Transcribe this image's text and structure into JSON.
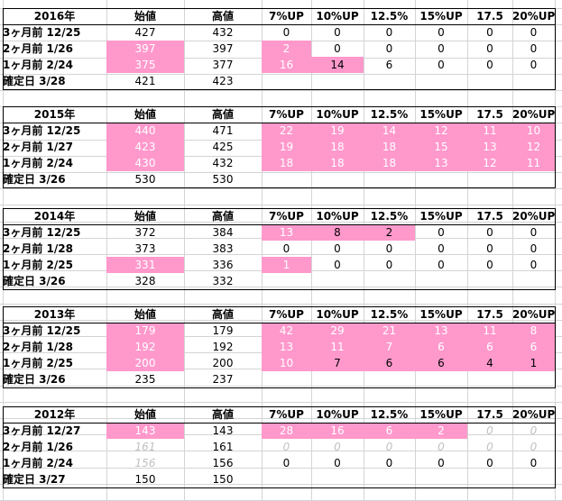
{
  "blocks": [
    {
      "year": "2016年",
      "headers": [
        "始値",
        "高値",
        "7%UP",
        "10%UP",
        "12.5%",
        "15%UP",
        "17.5",
        "20%UP"
      ],
      "rows": [
        {
          "label": "3ヶ月前 12/25",
          "open": "427",
          "high": "432",
          "pcts": [
            "0",
            "0",
            "0",
            "0",
            "0",
            "0"
          ],
          "open_hl": false,
          "pct_hl": [
            false,
            false,
            false,
            false,
            false,
            false
          ]
        },
        {
          "label": "2ヶ月前 1/26",
          "open": "397",
          "high": "397",
          "pcts": [
            "2",
            "0",
            "0",
            "0",
            "0",
            "0"
          ],
          "open_hl": true,
          "pct_hl": [
            true,
            false,
            false,
            false,
            false,
            false
          ]
        },
        {
          "label": "1ヶ月前 2/24",
          "open": "375",
          "high": "377",
          "pcts": [
            "16",
            "14",
            "6",
            "0",
            "0",
            "0"
          ],
          "open_hl": true,
          "pct_hl": [
            true,
            true,
            false,
            false,
            false,
            false
          ]
        },
        {
          "label": "確定日 3/28",
          "open": "421",
          "high": "423",
          "pcts": [
            "",
            "",
            "",
            "",
            "",
            ""
          ],
          "open_hl": false,
          "pct_hl": [
            false,
            false,
            false,
            false,
            false,
            false
          ]
        }
      ]
    },
    {
      "year": "2015年",
      "headers": [
        "始値",
        "高値",
        "7%UP",
        "10%UP",
        "12.5%",
        "15%UP",
        "17.5",
        "20%UP"
      ],
      "rows": [
        {
          "label": "3ヶ月前 12/25",
          "open": "440",
          "high": "471",
          "pcts": [
            "22",
            "19",
            "14",
            "12",
            "11",
            "10"
          ],
          "open_hl": true,
          "pct_hl": [
            true,
            true,
            true,
            true,
            true,
            true
          ]
        },
        {
          "label": "2ヶ月前 1/27",
          "open": "423",
          "high": "425",
          "pcts": [
            "19",
            "18",
            "18",
            "15",
            "13",
            "12"
          ],
          "open_hl": true,
          "pct_hl": [
            true,
            true,
            true,
            true,
            true,
            true
          ]
        },
        {
          "label": "1ヶ月前 2/24",
          "open": "430",
          "high": "432",
          "pcts": [
            "18",
            "18",
            "18",
            "13",
            "12",
            "11"
          ],
          "open_hl": true,
          "pct_hl": [
            true,
            true,
            true,
            true,
            true,
            true
          ]
        },
        {
          "label": "確定日 3/26",
          "open": "530",
          "high": "530",
          "pcts": [
            "",
            "",
            "",
            "",
            "",
            ""
          ],
          "open_hl": false,
          "pct_hl": [
            false,
            false,
            false,
            false,
            false,
            false
          ]
        }
      ]
    },
    {
      "year": "2014年",
      "headers": [
        "始値",
        "高値",
        "7%UP",
        "10%UP",
        "12.5%",
        "15%UP",
        "17.5",
        "20%UP"
      ],
      "rows": [
        {
          "label": "3ヶ月前 12/25",
          "open": "372",
          "high": "384",
          "pcts": [
            "13",
            "8",
            "2",
            "0",
            "0",
            "0"
          ],
          "open_hl": false,
          "pct_hl": [
            true,
            true,
            true,
            false,
            false,
            false
          ]
        },
        {
          "label": "2ヶ月前 1/28",
          "open": "373",
          "high": "383",
          "pcts": [
            "0",
            "0",
            "0",
            "0",
            "0",
            "0"
          ],
          "open_hl": false,
          "pct_hl": [
            false,
            false,
            false,
            false,
            false,
            false
          ]
        },
        {
          "label": "1ヶ月前 2/25",
          "open": "331",
          "high": "336",
          "pcts": [
            "1",
            "0",
            "0",
            "0",
            "0",
            "0"
          ],
          "open_hl": true,
          "pct_hl": [
            true,
            false,
            false,
            false,
            false,
            false
          ]
        },
        {
          "label": "確定日 3/26",
          "open": "328",
          "high": "332",
          "pcts": [
            "",
            "",
            "",
            "",
            "",
            ""
          ],
          "open_hl": false,
          "pct_hl": [
            false,
            false,
            false,
            false,
            false,
            false
          ]
        }
      ]
    },
    {
      "year": "2013年",
      "headers": [
        "始値",
        "高値",
        "7%UP",
        "10%UP",
        "12.5%",
        "15%UP",
        "17.5",
        "20%UP"
      ],
      "rows": [
        {
          "label": "3ヶ月前 12/25",
          "open": "179",
          "high": "179",
          "pcts": [
            "42",
            "29",
            "21",
            "13",
            "11",
            "8"
          ],
          "open_hl": true,
          "pct_hl": [
            true,
            true,
            true,
            true,
            true,
            true
          ]
        },
        {
          "label": "2ヶ月前 1/28",
          "open": "192",
          "high": "192",
          "pcts": [
            "13",
            "11",
            "7",
            "6",
            "6",
            "6"
          ],
          "open_hl": true,
          "pct_hl": [
            true,
            true,
            true,
            true,
            true,
            true
          ]
        },
        {
          "label": "1ヶ月前 2/25",
          "open": "200",
          "high": "200",
          "pcts": [
            "10",
            "7",
            "6",
            "6",
            "4",
            "1"
          ],
          "open_hl": true,
          "pct_hl": [
            true,
            true,
            true,
            true,
            true,
            true
          ]
        },
        {
          "label": "確定日 3/26",
          "open": "235",
          "high": "237",
          "pcts": [
            "",
            "",
            "",
            "",
            "",
            ""
          ],
          "open_hl": false,
          "pct_hl": [
            false,
            false,
            false,
            false,
            false,
            false
          ]
        }
      ]
    },
    {
      "year": "2012年",
      "headers": [
        "始値",
        "高値",
        "7%UP",
        "10%UP",
        "12.5%",
        "15%UP",
        "17.5",
        "20%UP"
      ],
      "rows": [
        {
          "label": "3ヶ月前 12/27",
          "open": "143",
          "high": "143",
          "pcts": [
            "28",
            "16",
            "6",
            "2",
            "0",
            "0"
          ],
          "open_hl": true,
          "pct_hl": [
            true,
            true,
            true,
            true,
            false,
            false
          ],
          "pct_gray": [
            false,
            false,
            false,
            false,
            true,
            true
          ]
        },
        {
          "label": "2ヶ月前 1/26",
          "open": "161",
          "high": "161",
          "pcts": [
            "0",
            "0",
            "0",
            "0",
            "0",
            "0"
          ],
          "open_hl": false,
          "open_gray": true,
          "pct_hl": [
            false,
            false,
            false,
            false,
            false,
            false
          ],
          "pct_gray": [
            true,
            true,
            true,
            true,
            true,
            true
          ]
        },
        {
          "label": "1ヶ月前 2/24",
          "open": "156",
          "high": "156",
          "pcts": [
            "0",
            "0",
            "0",
            "0",
            "0",
            "0"
          ],
          "open_hl": false,
          "open_gray": true,
          "pct_hl": [
            false,
            false,
            false,
            false,
            false,
            false
          ]
        },
        {
          "label": "確定日 3/27",
          "open": "150",
          "high": "150",
          "pcts": [
            "",
            "",
            "",
            "",
            "",
            ""
          ],
          "open_hl": false,
          "pct_hl": [
            false,
            false,
            false,
            false,
            false,
            false
          ]
        }
      ]
    }
  ],
  "colors": {
    "highlight": "#ff99cc",
    "grid": "#d4d4d4",
    "border": "#000000",
    "grayText": "#c0c0c0"
  }
}
